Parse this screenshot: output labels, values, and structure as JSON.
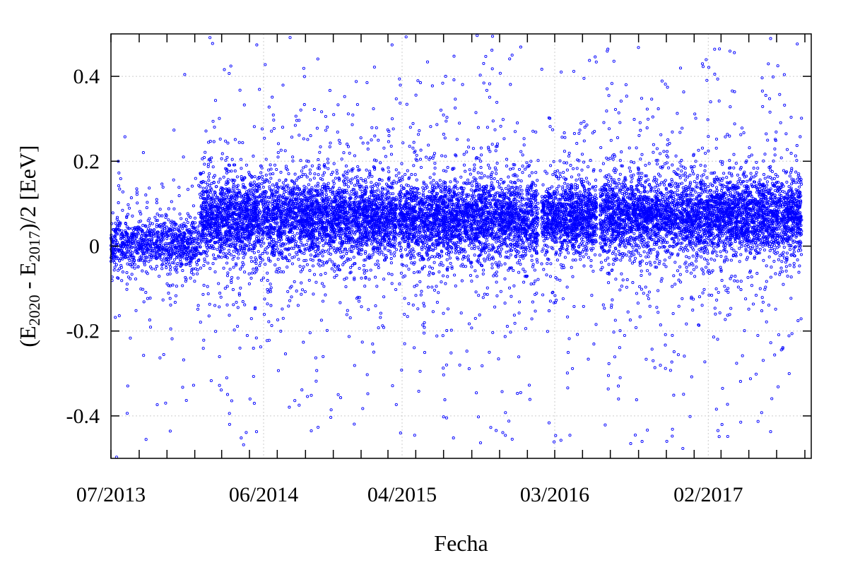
{
  "chart_data": {
    "type": "scatter",
    "title": "",
    "xlabel": "Fecha",
    "ylabel": {
      "prefix": "(E",
      "sub1": "2020",
      "mid": " - E",
      "sub2": "2017",
      "suffix": ")/2 [EeV]"
    },
    "x_range": [
      "2013-07-01",
      "2017-09-15"
    ],
    "ylim": [
      -0.5,
      0.5
    ],
    "y_ticks": [
      -0.4,
      -0.2,
      0,
      0.2,
      0.4
    ],
    "y_tick_labels": [
      "-0.4",
      "-0.2",
      "0",
      "0.2",
      "0.4"
    ],
    "x_tick_labels": [
      {
        "date": "2013-07-01",
        "label": "07/2013"
      },
      {
        "date": "2014-06-01",
        "label": "06/2014"
      },
      {
        "date": "2015-04-01",
        "label": "04/2015"
      },
      {
        "date": "2016-03-01",
        "label": "03/2016"
      },
      {
        "date": "2017-02-01",
        "label": "02/2017"
      }
    ],
    "grid": true,
    "marker_color": "#0000ff",
    "segments": [
      {
        "start": "2013-07-01",
        "end": "2014-01-10",
        "median": 0.005,
        "spread": 0.03,
        "density": 80
      },
      {
        "start": "2014-01-12",
        "end": "2015-03-20",
        "median": 0.065,
        "spread": 0.045,
        "density": 150
      },
      {
        "start": "2015-03-24",
        "end": "2016-01-25",
        "median": 0.065,
        "spread": 0.045,
        "density": 150
      },
      {
        "start": "2016-02-01",
        "end": "2016-06-01",
        "median": 0.065,
        "spread": 0.04,
        "density": 150
      },
      {
        "start": "2016-06-08",
        "end": "2017-08-25",
        "median": 0.07,
        "spread": 0.045,
        "density": 150
      }
    ]
  }
}
